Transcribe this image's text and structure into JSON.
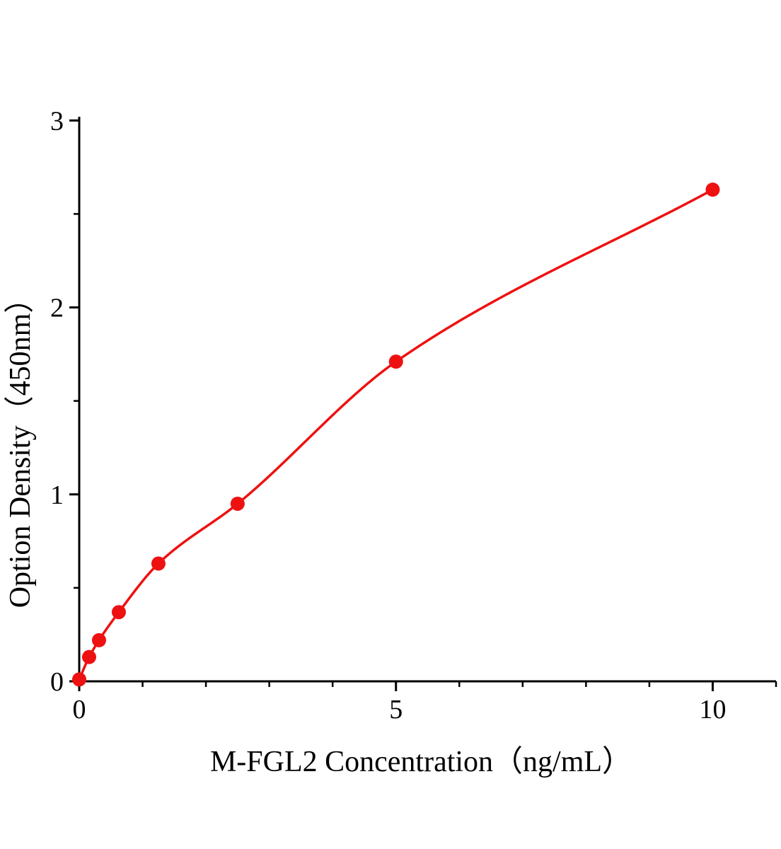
{
  "figure": {
    "background": "#ffffff"
  },
  "chart_data": {
    "type": "line",
    "title": "",
    "xlabel": "M-FGL2 Concentration（ng/mL）",
    "ylabel": "Option Density（450nm）",
    "x": [
      0,
      0.156,
      0.3125,
      0.625,
      1.25,
      2.5,
      5,
      10
    ],
    "y": [
      0.01,
      0.13,
      0.22,
      0.37,
      0.63,
      0.95,
      1.71,
      2.63
    ],
    "xlim": [
      0,
      11
    ],
    "ylim": [
      0,
      3.02
    ],
    "x_major_ticks": [
      0,
      5,
      10
    ],
    "x_minor_ticks": [
      1,
      2,
      3,
      4,
      6,
      7,
      8,
      9,
      11
    ],
    "y_major_ticks": [
      0,
      1,
      2,
      3
    ],
    "y_minor_ticks": [
      0.5,
      1.5,
      2.5
    ],
    "grid": false,
    "legend": false,
    "series_color": "#ee1111",
    "axis_color": "#000000",
    "marker": "circle",
    "marker_radius": 10,
    "line_width": 3.5
  }
}
